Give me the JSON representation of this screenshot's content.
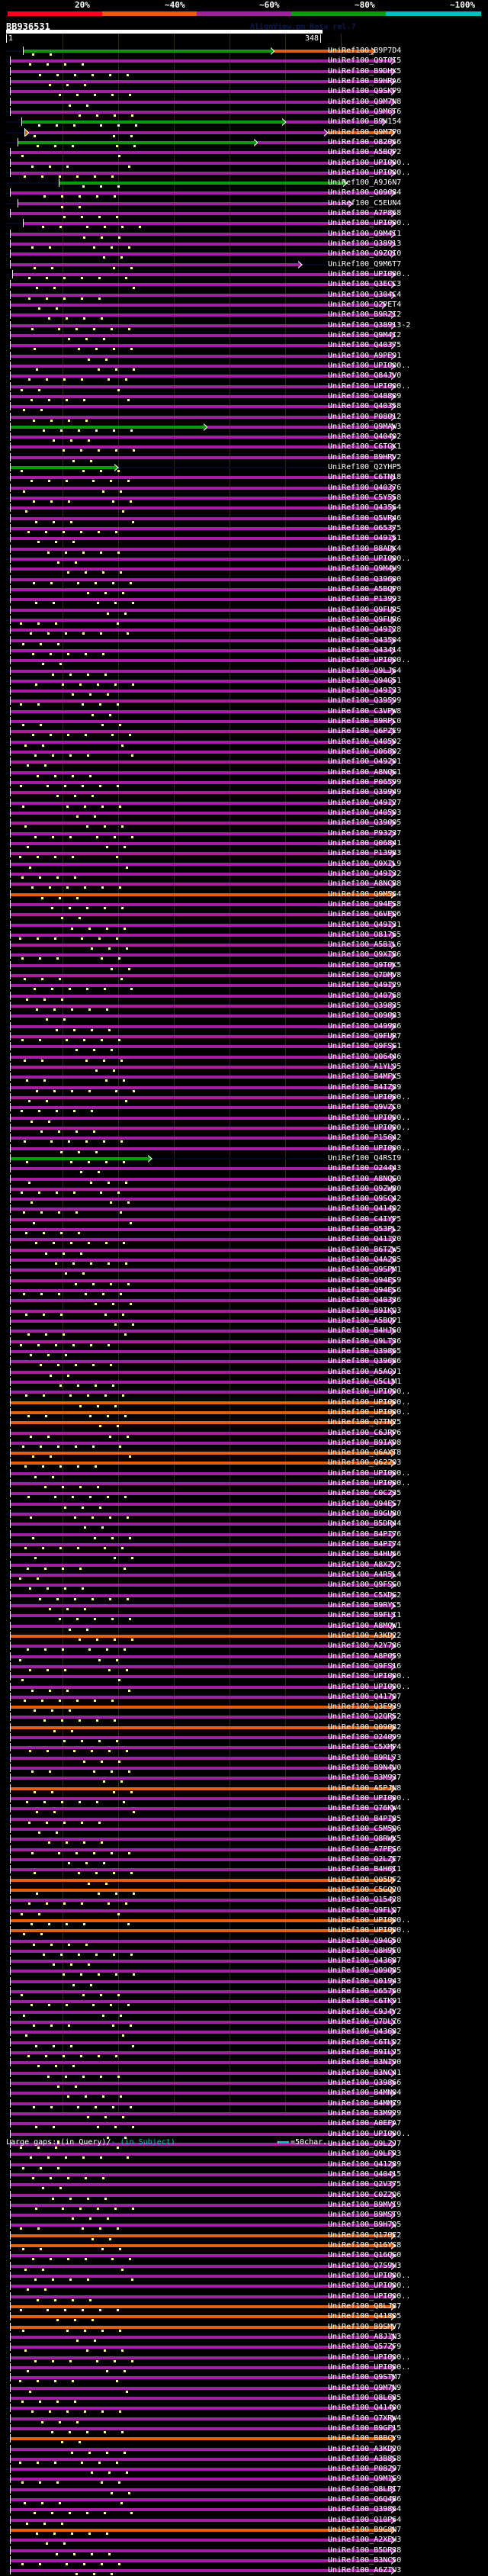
{
  "score_scale": {
    "labels": [
      "20%",
      "~40%",
      "~60%",
      "~80%",
      "~100%"
    ],
    "colors": [
      "#ff0020",
      "#e06010",
      "#a020a0",
      "#0a9a0a",
      "#00c0c0"
    ]
  },
  "query": {
    "id": "BB936531",
    "start": "1",
    "end": "348",
    "length": 348
  },
  "watermark": "AlignView.pm Beta rel.7",
  "colors": {
    "g": "#0a9a0a",
    "o": "#e06010",
    "p": "#a020a0"
  },
  "hits": [
    [
      "UniRef100_B9P7D4",
      "g",
      15,
      240,
      "o",
      330
    ],
    [
      "UniRef100_Q9T0I5",
      "p",
      3,
      348
    ],
    [
      "UniRef100_B9DHX5",
      "p",
      3,
      348
    ],
    [
      "UniRef100_B9HRA6",
      "p",
      3,
      348
    ],
    [
      "UniRef100_Q9SKP9",
      "p",
      3,
      348
    ],
    [
      "UniRef100_Q9M7N8",
      "p",
      3,
      348
    ],
    [
      "UniRef100_Q9M6T6",
      "p",
      3,
      348
    ],
    [
      "UniRef100_B9H154",
      "g",
      13,
      250,
      "p",
      340
    ],
    [
      "UniRef100_Q9M7P0",
      "o",
      16,
      20,
      "p",
      288,
      "o",
      348
    ],
    [
      "UniRef100_O82066",
      "g",
      10,
      225,
      "p",
      348
    ],
    [
      "UniRef100_A5BQP2",
      "p",
      3,
      348
    ],
    [
      "UniRef100_UPI000..",
      "p",
      3,
      348
    ],
    [
      "UniRef100_UPI000..",
      "p",
      3,
      348
    ],
    [
      "UniRef100_A9J6N7",
      "g",
      47,
      305
    ],
    [
      "UniRef100_Q09084",
      "p",
      3,
      348
    ],
    [
      "UniRef100_C5EUN4",
      "p",
      10,
      310
    ],
    [
      "UniRef100_A7P868",
      "p",
      3,
      348
    ],
    [
      "UniRef100_UPI000..",
      "p",
      15,
      348
    ],
    [
      "UniRef100_Q9M4I1",
      "p",
      3,
      348
    ],
    [
      "UniRef100_Q38913",
      "p",
      3,
      348
    ],
    [
      "UniRef100_Q9ZQI0",
      "p",
      3,
      348
    ],
    [
      "UniRef100_Q9M6T7",
      "p",
      3,
      265
    ],
    [
      "UniRef100_UPI000..",
      "p",
      5,
      348
    ],
    [
      "UniRef100_Q3ECC3",
      "p",
      3,
      348
    ],
    [
      "UniRef100_Q304C4",
      "p",
      3,
      348
    ],
    [
      "UniRef100_Q2PET4",
      "p",
      3,
      340
    ],
    [
      "UniRef100_B9RZI2",
      "p",
      3,
      348
    ],
    [
      "UniRef100_Q38913-2",
      "p",
      3,
      348
    ],
    [
      "UniRef100_Q9M4I2",
      "p",
      3,
      348
    ],
    [
      "UniRef100_Q40375",
      "p",
      3,
      348
    ],
    [
      "UniRef100_A9PE91",
      "p",
      3,
      348
    ],
    [
      "UniRef100_UPI000..",
      "p",
      3,
      348
    ],
    [
      "UniRef100_Q84JV0",
      "p",
      3,
      348
    ],
    [
      "UniRef100_UPI000..",
      "p",
      3,
      348
    ],
    [
      "UniRef100_O48809",
      "p",
      3,
      348
    ],
    [
      "UniRef100_Q40358",
      "p",
      3,
      348
    ],
    [
      "UniRef100_P08012",
      "p",
      3,
      348
    ],
    [
      "UniRef100_Q9MAW3",
      "g",
      3,
      180,
      "p",
      348
    ],
    [
      "UniRef100_Q40402",
      "p",
      3,
      348
    ],
    [
      "UniRef100_C6TGK1",
      "p",
      3,
      348
    ],
    [
      "UniRef100_B9HRV2",
      "p",
      3,
      348
    ],
    [
      "UniRef100_Q2YHP5",
      "g",
      3,
      100
    ],
    [
      "UniRef100_C6TN18",
      "p",
      3,
      348
    ],
    [
      "UniRef100_Q40376",
      "p",
      3,
      348
    ],
    [
      "UniRef100_C5Y558",
      "p",
      3,
      348
    ],
    [
      "UniRef100_Q43564",
      "p",
      3,
      348
    ],
    [
      "UniRef100_Q5VR46",
      "p",
      3,
      348
    ],
    [
      "UniRef100_O65375",
      "p",
      3,
      348
    ],
    [
      "UniRef100_O49151",
      "p",
      3,
      348
    ],
    [
      "UniRef100_B8ADK4",
      "p",
      3,
      348
    ],
    [
      "UniRef100_UPI000..",
      "p",
      3,
      348
    ],
    [
      "UniRef100_Q9M4H9",
      "p",
      3,
      348
    ],
    [
      "UniRef100_Q39600",
      "p",
      3,
      348
    ],
    [
      "UniRef100_A5BQP0",
      "p",
      3,
      348
    ],
    [
      "UniRef100_P13993",
      "p",
      3,
      348
    ],
    [
      "UniRef100_Q9FUR5",
      "p",
      3,
      348
    ],
    [
      "UniRef100_Q9FUR6",
      "p",
      3,
      348
    ],
    [
      "UniRef100_Q49I28",
      "p",
      3,
      348
    ],
    [
      "UniRef100_Q43504",
      "p",
      3,
      348
    ],
    [
      "UniRef100_Q43414",
      "p",
      3,
      348
    ],
    [
      "UniRef100_UPI000..",
      "p",
      3,
      348
    ],
    [
      "UniRef100_Q9LJ64",
      "p",
      3,
      348
    ],
    [
      "UniRef100_Q94G51",
      "p",
      3,
      348
    ],
    [
      "UniRef100_Q49I33",
      "p",
      3,
      348
    ],
    [
      "UniRef100_Q39599",
      "p",
      3,
      348
    ],
    [
      "UniRef100_C3VPW8",
      "p",
      3,
      348
    ],
    [
      "UniRef100_B9RPC0",
      "p",
      3,
      348
    ],
    [
      "UniRef100_Q6PZE9",
      "p",
      3,
      348
    ],
    [
      "UniRef100_Q40502",
      "p",
      3,
      348
    ],
    [
      "UniRef100_O06802",
      "p",
      3,
      348
    ],
    [
      "UniRef100_O49201",
      "p",
      3,
      348
    ],
    [
      "UniRef100_A8NQG1",
      "p",
      3,
      348
    ],
    [
      "UniRef100_P06599",
      "p",
      3,
      348
    ],
    [
      "UniRef100_Q39949",
      "p",
      3,
      348
    ],
    [
      "UniRef100_Q49I27",
      "p",
      3,
      348
    ],
    [
      "UniRef100_Q40503",
      "p",
      3,
      348
    ],
    [
      "UniRef100_Q39005",
      "p",
      3,
      348
    ],
    [
      "UniRef100_P93237",
      "p",
      3,
      348
    ],
    [
      "UniRef100_Q06841",
      "p",
      3,
      348
    ],
    [
      "UniRef100_P13983",
      "p",
      3,
      348
    ],
    [
      "UniRef100_Q9XIL9",
      "p",
      3,
      348
    ],
    [
      "UniRef100_Q49I32",
      "p",
      3,
      348
    ],
    [
      "UniRef100_A8NCB8",
      "p",
      3,
      348
    ],
    [
      "UniRef100_Q9M564",
      "o",
      3,
      348
    ],
    [
      "UniRef100_Q94ES8",
      "p",
      3,
      348
    ],
    [
      "UniRef100_Q6VEQ6",
      "p",
      3,
      348
    ],
    [
      "UniRef100_Q49I31",
      "p",
      3,
      348
    ],
    [
      "UniRef100_O81765",
      "p",
      3,
      348
    ],
    [
      "UniRef100_A5B1L6",
      "p",
      3,
      348
    ],
    [
      "UniRef100_Q9XIB6",
      "p",
      3,
      348
    ],
    [
      "UniRef100_Q9T0K5",
      "p",
      3,
      348
    ],
    [
      "UniRef100_Q7DMV8",
      "p",
      3,
      348
    ],
    [
      "UniRef100_Q49I29",
      "p",
      3,
      348
    ],
    [
      "UniRef100_Q40768",
      "p",
      3,
      348
    ],
    [
      "UniRef100_Q39835",
      "p",
      3,
      348
    ],
    [
      "UniRef100_Q09083",
      "p",
      3,
      348
    ],
    [
      "UniRef100_O49986",
      "p",
      3,
      348
    ],
    [
      "UniRef100_Q9FUR7",
      "p",
      3,
      348
    ],
    [
      "UniRef100_Q9FSG1",
      "p",
      3,
      348
    ],
    [
      "UniRef100_Q06446",
      "p",
      3,
      348
    ],
    [
      "UniRef100_A1YL95",
      "p",
      3,
      348
    ],
    [
      "UniRef100_B4MFX5",
      "p",
      3,
      348
    ],
    [
      "UniRef100_B4IZ89",
      "p",
      3,
      348
    ],
    [
      "UniRef100_UPI000..",
      "p",
      3,
      348
    ],
    [
      "UniRef100_Q9VZC0",
      "p",
      3,
      348
    ],
    [
      "UniRef100_UPI000..",
      "p",
      3,
      348
    ],
    [
      "UniRef100_UPI000..",
      "p",
      3,
      348
    ],
    [
      "UniRef100_P15642",
      "p",
      3,
      348
    ],
    [
      "UniRef100_UPI000..",
      "p",
      3,
      348
    ],
    [
      "UniRef100_Q4RSI9",
      "g",
      3,
      130
    ],
    [
      "UniRef100_O24443",
      "p",
      3,
      348
    ],
    [
      "UniRef100_A8NQG0",
      "p",
      3,
      348
    ],
    [
      "UniRef100_Q9ZW80",
      "p",
      3,
      348
    ],
    [
      "UniRef100_Q9SC42",
      "p",
      3,
      348
    ],
    [
      "UniRef100_Q41402",
      "p",
      3,
      348
    ],
    [
      "UniRef100_C4IYP5",
      "p",
      3,
      348
    ],
    [
      "UniRef100_Q53PL2",
      "p",
      3,
      348
    ],
    [
      "UniRef100_Q41120",
      "p",
      3,
      348
    ],
    [
      "UniRef100_B6TZW5",
      "p",
      3,
      348
    ],
    [
      "UniRef100_Q4A2B5",
      "p",
      3,
      348
    ],
    [
      "UniRef100_Q9SPM1",
      "p",
      3,
      348
    ],
    [
      "UniRef100_Q94ES9",
      "p",
      3,
      348
    ],
    [
      "UniRef100_Q94ES6",
      "p",
      3,
      348
    ],
    [
      "UniRef100_Q40336",
      "p",
      3,
      348
    ],
    [
      "UniRef100_B9IKQ3",
      "p",
      3,
      348
    ],
    [
      "UniRef100_A5BQP1",
      "p",
      3,
      348
    ],
    [
      "UniRef100_B4HJ60",
      "p",
      3,
      348
    ],
    [
      "UniRef100_Q9LT36",
      "p",
      3,
      348
    ],
    [
      "UniRef100_Q39865",
      "p",
      3,
      348
    ],
    [
      "UniRef100_Q39686",
      "p",
      3,
      348
    ],
    [
      "UniRef100_A5AGJ1",
      "p",
      3,
      348
    ],
    [
      "UniRef100_Q5CLM1",
      "p",
      3,
      348
    ],
    [
      "UniRef100_UPI000..",
      "p",
      3,
      348
    ],
    [
      "UniRef100_UPI000..",
      "o",
      3,
      348
    ],
    [
      "UniRef100_UPI000..",
      "o",
      3,
      348
    ],
    [
      "UniRef100_Q7TN25",
      "o",
      3,
      348
    ],
    [
      "UniRef100_C6JRP6",
      "p",
      3,
      348
    ],
    [
      "UniRef100_B9IAD8",
      "p",
      3,
      348
    ],
    [
      "UniRef100_Q6AXT8",
      "o",
      3,
      348
    ],
    [
      "UniRef100_Q62203",
      "o",
      3,
      348
    ],
    [
      "UniRef100_UPI000..",
      "p",
      3,
      348
    ],
    [
      "UniRef100_UPI000..",
      "p",
      3,
      348
    ],
    [
      "UniRef100_C0C235",
      "p",
      3,
      348
    ],
    [
      "UniRef100_Q94ES7",
      "p",
      3,
      348
    ],
    [
      "UniRef100_B9GU80",
      "p",
      3,
      348
    ],
    [
      "UniRef100_B5DR44",
      "p",
      3,
      348
    ],
    [
      "UniRef100_B4PI76",
      "p",
      3,
      348
    ],
    [
      "UniRef100_B4PI74",
      "p",
      3,
      348
    ],
    [
      "UniRef100_B4HU66",
      "p",
      3,
      348
    ],
    [
      "UniRef100_A8XZV2",
      "p",
      3,
      348
    ],
    [
      "UniRef100_A4R5L4",
      "p",
      3,
      348
    ],
    [
      "UniRef100_Q9FSG0",
      "p",
      3,
      348
    ],
    [
      "UniRef100_C5XDG2",
      "p",
      3,
      348
    ],
    [
      "UniRef100_B9RYC5",
      "p",
      3,
      348
    ],
    [
      "UniRef100_B9FLI1",
      "p",
      3,
      348
    ],
    [
      "UniRef100_A8MQW1",
      "p",
      3,
      348
    ],
    [
      "UniRef100_A3KD22",
      "o",
      3,
      348
    ],
    [
      "UniRef100_A2Y786",
      "p",
      3,
      348
    ],
    [
      "UniRef100_A8P059",
      "p",
      3,
      348
    ],
    [
      "UniRef100_Q9FS16",
      "p",
      3,
      348
    ],
    [
      "UniRef100_UPI000..",
      "p",
      3,
      348
    ],
    [
      "UniRef100_UPI000..",
      "p",
      3,
      348
    ],
    [
      "UniRef100_Q41707",
      "p",
      3,
      348
    ],
    [
      "UniRef100_Q3E939",
      "o",
      3,
      348
    ],
    [
      "UniRef100_Q2QR52",
      "p",
      3,
      348
    ],
    [
      "UniRef100_Q09082",
      "o",
      3,
      348
    ],
    [
      "UniRef100_O24099",
      "p",
      3,
      348
    ],
    [
      "UniRef100_C5XMP4",
      "p",
      3,
      348
    ],
    [
      "UniRef100_B9RL73",
      "p",
      3,
      348
    ],
    [
      "UniRef100_B9N4U0",
      "p",
      3,
      348
    ],
    [
      "UniRef100_B3M937",
      "p",
      3,
      348
    ],
    [
      "UniRef100_A5PJN8",
      "o",
      3,
      348
    ],
    [
      "UniRef100_UPI000..",
      "p",
      3,
      348
    ],
    [
      "UniRef100_Q76KW4",
      "p",
      3,
      348
    ],
    [
      "UniRef100_B4PI85",
      "p",
      3,
      348
    ],
    [
      "UniRef100_C5M5Q6",
      "p",
      3,
      348
    ],
    [
      "UniRef100_Q8RWX5",
      "p",
      3,
      348
    ],
    [
      "UniRef100_A7PES6",
      "p",
      3,
      348
    ],
    [
      "UniRef100_Q2LZE7",
      "p",
      3,
      348
    ],
    [
      "UniRef100_B4H6I1",
      "p",
      3,
      348
    ],
    [
      "UniRef100_Q05DF2",
      "o",
      3,
      348
    ],
    [
      "UniRef100_C5GQ20",
      "o",
      3,
      348
    ],
    [
      "UniRef100_Q15428",
      "p",
      3,
      348
    ],
    [
      "UniRef100_Q9FLQ7",
      "p",
      3,
      348
    ],
    [
      "UniRef100_UPI000..",
      "o",
      3,
      348
    ],
    [
      "UniRef100_UPI000..",
      "o",
      3,
      348
    ],
    [
      "UniRef100_Q94G50",
      "p",
      3,
      348
    ],
    [
      "UniRef100_Q8H9E0",
      "p",
      3,
      348
    ],
    [
      "UniRef100_Q43687",
      "p",
      3,
      348
    ],
    [
      "UniRef100_Q09085",
      "p",
      3,
      348
    ],
    [
      "UniRef100_Q01943",
      "p",
      3,
      348
    ],
    [
      "UniRef100_O65760",
      "p",
      3,
      348
    ],
    [
      "UniRef100_C6TK91",
      "p",
      3,
      348
    ],
    [
      "UniRef100_C9J4Y2",
      "p",
      3,
      348
    ],
    [
      "UniRef100_Q7DLZ6",
      "p",
      3,
      348
    ],
    [
      "UniRef100_Q43682",
      "p",
      3,
      348
    ],
    [
      "UniRef100_C6TLD2",
      "p",
      3,
      348
    ],
    [
      "UniRef100_B9ILJ5",
      "p",
      3,
      348
    ],
    [
      "UniRef100_B3NI90",
      "p",
      3,
      348
    ],
    [
      "UniRef100_B3NC41",
      "p",
      3,
      348
    ],
    [
      "UniRef100_Q39866",
      "p",
      3,
      348
    ],
    [
      "UniRef100_B4MN04",
      "p",
      3,
      348
    ],
    [
      "UniRef100_B4MMZ9",
      "p",
      3,
      348
    ],
    [
      "UniRef100_B3M929",
      "p",
      3,
      348
    ],
    [
      "UniRef100_A0EFA7",
      "p",
      3,
      348
    ],
    [
      "UniRef100_UPI000..",
      "p",
      3,
      348
    ],
    [
      "UniRef100_Q9LZJ7",
      "p",
      3,
      348
    ],
    [
      "UniRef100_Q9LFR3",
      "p",
      3,
      348
    ],
    [
      "UniRef100_Q41289",
      "p",
      3,
      348
    ],
    [
      "UniRef100_Q40415",
      "p",
      3,
      348
    ],
    [
      "UniRef100_Q2V375",
      "p",
      3,
      348
    ],
    [
      "UniRef100_C0Z2Q6",
      "p",
      3,
      348
    ],
    [
      "UniRef100_B9MVI9",
      "p",
      3,
      348
    ],
    [
      "UniRef100_B9MST9",
      "p",
      3,
      348
    ],
    [
      "UniRef100_B9H7Q5",
      "p",
      3,
      348
    ],
    [
      "UniRef100_Q170E2",
      "o",
      3,
      348
    ],
    [
      "UniRef100_Q16YS8",
      "o",
      3,
      348
    ],
    [
      "UniRef100_Q16QG0",
      "p",
      3,
      348
    ],
    [
      "UniRef100_Q7S9H3",
      "p",
      3,
      348
    ],
    [
      "UniRef100_UPI000..",
      "p",
      3,
      348
    ],
    [
      "UniRef100_UPI000..",
      "p",
      3,
      348
    ],
    [
      "UniRef100_UPI000..",
      "p",
      3,
      348
    ],
    [
      "UniRef100_Q8LJ87",
      "o",
      3,
      348
    ],
    [
      "UniRef100_Q41805",
      "o",
      3,
      348
    ],
    [
      "UniRef100_B9SMV7",
      "o",
      3,
      348
    ],
    [
      "UniRef100_A8J1N3",
      "p",
      3,
      348
    ],
    [
      "UniRef100_Q57ZF9",
      "p",
      3,
      348
    ],
    [
      "UniRef100_UPI000..",
      "p",
      3,
      348
    ],
    [
      "UniRef100_UPI000..",
      "p",
      3,
      348
    ],
    [
      "UniRef100_Q9STM7",
      "p",
      3,
      348
    ],
    [
      "UniRef100_Q9M7N9",
      "p",
      3,
      348
    ],
    [
      "UniRef100_Q8L685",
      "p",
      3,
      348
    ],
    [
      "UniRef100_Q41400",
      "p",
      3,
      348
    ],
    [
      "UniRef100_Q7XRW4",
      "p",
      3,
      348
    ],
    [
      "UniRef100_B9GF15",
      "p",
      3,
      348
    ],
    [
      "UniRef100_B8BCY9",
      "o",
      3,
      348
    ],
    [
      "UniRef100_A3KD20",
      "p",
      3,
      348
    ],
    [
      "UniRef100_A3B8S8",
      "p",
      3,
      348
    ],
    [
      "UniRef100_P08297",
      "p",
      3,
      348
    ],
    [
      "UniRef100_Q9M1G9",
      "p",
      3,
      348
    ],
    [
      "UniRef100_Q8LBI7",
      "p",
      3,
      348
    ],
    [
      "UniRef100_Q6Q4B6",
      "p",
      3,
      348
    ],
    [
      "UniRef100_Q39864",
      "p",
      3,
      348
    ],
    [
      "UniRef100_Q10P64",
      "p",
      3,
      348
    ],
    [
      "UniRef100_B9G8N7",
      "o",
      3,
      348
    ],
    [
      "UniRef100_A2XEH3",
      "p",
      3,
      348
    ],
    [
      "UniRef100_B5DR38",
      "p",
      3,
      348
    ],
    [
      "UniRef100_B3NC50",
      "p",
      3,
      348
    ],
    [
      "UniRef100_A6ZIU3",
      "p",
      3,
      348
    ]
  ],
  "ends": [
    330,
    348,
    348,
    348,
    348,
    348,
    348,
    340,
    348,
    348,
    348,
    348,
    348,
    305,
    348,
    310,
    348,
    348,
    348,
    348,
    348,
    265,
    348,
    348,
    348,
    340,
    348,
    348,
    348,
    348
  ],
  "legend": {
    "prefix": "Large gaps:",
    "query_part": "(in Query)/",
    "subject_part": "- (in Subject)",
    "scale_label": "=50char."
  }
}
